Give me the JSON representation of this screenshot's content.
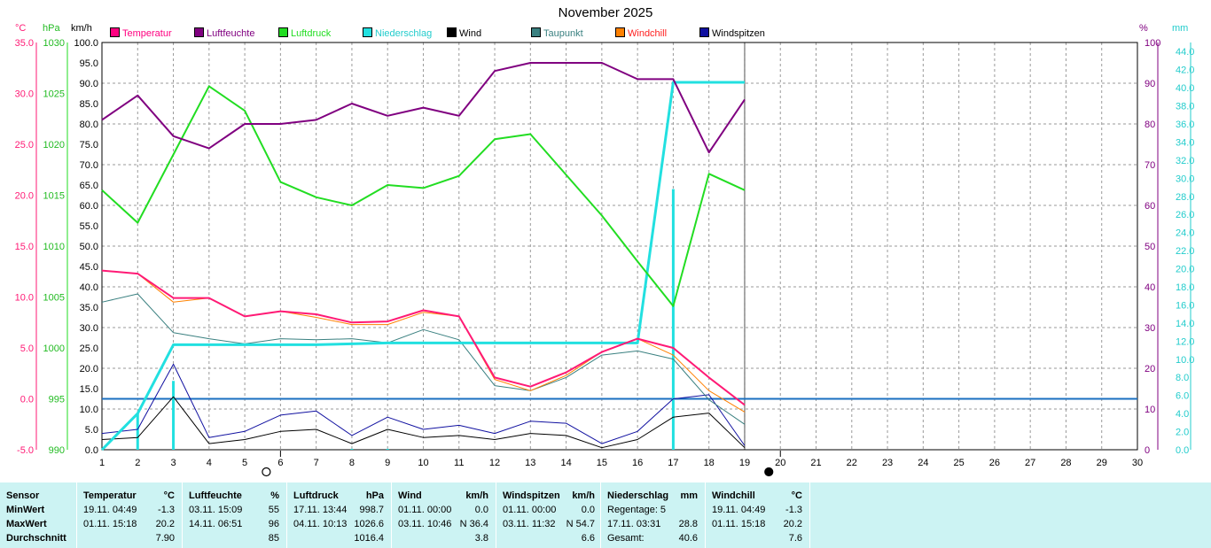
{
  "chart_data": {
    "type": "line",
    "title": "November 2025",
    "unit_labels": {
      "temp": "°C",
      "pressure": "hPa",
      "wind": "km/h",
      "humidity": "%",
      "precip": "mm"
    },
    "x": [
      1,
      2,
      3,
      4,
      5,
      6,
      7,
      8,
      9,
      10,
      11,
      12,
      13,
      14,
      15,
      16,
      17,
      18,
      19
    ],
    "x_ticks": [
      "1",
      "2",
      "3",
      "4",
      "5",
      "6",
      "7",
      "8",
      "9",
      "10",
      "11",
      "12",
      "13",
      "14",
      "15",
      "16",
      "17",
      "18",
      "19",
      "20",
      "21",
      "22",
      "23",
      "24",
      "25",
      "26",
      "27",
      "28",
      "29",
      "30"
    ],
    "xlim": [
      1,
      30
    ],
    "axes": {
      "temp": {
        "range": [
          -5,
          35
        ],
        "ticks": [
          "-5.0",
          "0.0",
          "5.0",
          "10.0",
          "15.0",
          "20.0",
          "25.0",
          "30.0",
          "35.0"
        ]
      },
      "pressure": {
        "range": [
          990,
          1030
        ],
        "ticks": [
          "990",
          "995",
          "1000",
          "1005",
          "1010",
          "1015",
          "1020",
          "1025",
          "1030"
        ]
      },
      "wind": {
        "range": [
          0,
          100
        ],
        "ticks": [
          "0.0",
          "5.0",
          "10.0",
          "15.0",
          "20.0",
          "25.0",
          "30.0",
          "35.0",
          "40.0",
          "45.0",
          "50.0",
          "55.0",
          "60.0",
          "65.0",
          "70.0",
          "75.0",
          "80.0",
          "85.0",
          "90.0",
          "95.0",
          "100.0"
        ]
      },
      "humidity": {
        "range": [
          0,
          100
        ],
        "ticks": [
          "0",
          "10",
          "20",
          "30",
          "40",
          "50",
          "60",
          "70",
          "80",
          "90",
          "100"
        ]
      },
      "precip": {
        "range": [
          0,
          45
        ],
        "ticks": [
          "0.0",
          "2.0",
          "4.0",
          "6.0",
          "8.0",
          "10.0",
          "12.0",
          "14.0",
          "16.0",
          "18.0",
          "20.0",
          "22.0",
          "24.0",
          "26.0",
          "28.0",
          "30.0",
          "32.0",
          "34.0",
          "36.0",
          "38.0",
          "40.0",
          "42.0",
          "44.0"
        ]
      }
    },
    "legend": [
      {
        "name": "Temperatur",
        "color": "#ff0080",
        "text_color": "#ff0080"
      },
      {
        "name": "Luftfeuchte",
        "color": "#800080",
        "text_color": "#800080"
      },
      {
        "name": "Luftdruck",
        "color": "#22dd22",
        "text_color": "#22dd22"
      },
      {
        "name": "Niederschlag",
        "color": "#22e0e0",
        "text_color": "#22cccc"
      },
      {
        "name": "Wind",
        "color": "#000000",
        "text_color": "#000000"
      },
      {
        "name": "Taupunkt",
        "color": "#3a8080",
        "text_color": "#3a8080"
      },
      {
        "name": "Windchill",
        "color": "#ff8000",
        "text_color": "#ff2020"
      },
      {
        "name": "Windspitzen",
        "color": "#1010a0",
        "text_color": "#000000"
      }
    ],
    "series": [
      {
        "name": "Temperatur",
        "axis": "temp",
        "color": "#ff1a75",
        "width": 2,
        "values": [
          12.6,
          12.3,
          9.9,
          9.9,
          8.1,
          8.6,
          8.3,
          7.5,
          7.6,
          8.7,
          8.1,
          2.1,
          1.2,
          2.6,
          4.6,
          5.9,
          5.0,
          2.1,
          -0.6
        ]
      },
      {
        "name": "Luftfeuchte",
        "axis": "humidity",
        "color": "#800080",
        "width": 2,
        "values": [
          81,
          87,
          77,
          74,
          80,
          80,
          81,
          85,
          82,
          84,
          82,
          93,
          95,
          95,
          95,
          91,
          91,
          73,
          86
        ]
      },
      {
        "name": "Luftdruck",
        "axis": "pressure",
        "color": "#22dd22",
        "width": 2,
        "values": [
          1015.5,
          1012.3,
          1019.0,
          1025.7,
          1023.3,
          1016.3,
          1014.8,
          1014.0,
          1016.0,
          1015.7,
          1016.9,
          1020.5,
          1021.0,
          1017.0,
          1013.0,
          1008.5,
          1004.1,
          1017.1,
          1015.5
        ]
      },
      {
        "name": "Taupunkt",
        "axis": "temp",
        "color": "#3a8080",
        "width": 1,
        "values": [
          9.5,
          10.3,
          6.5,
          5.9,
          5.4,
          5.9,
          5.8,
          5.9,
          5.5,
          6.8,
          5.8,
          1.3,
          0.8,
          2.1,
          4.3,
          4.7,
          3.9,
          -0.1,
          -2.5
        ]
      },
      {
        "name": "Windchill",
        "axis": "temp",
        "color": "#ff8000",
        "width": 1,
        "values": [
          12.6,
          12.3,
          9.5,
          9.9,
          8.1,
          8.6,
          8.0,
          7.3,
          7.3,
          8.5,
          8.1,
          1.9,
          0.8,
          2.3,
          4.6,
          5.9,
          4.3,
          0.8,
          -1.3
        ]
      },
      {
        "name": "Wind",
        "axis": "wind",
        "color": "#000000",
        "width": 1,
        "values": [
          2.5,
          3.0,
          13.0,
          1.5,
          2.5,
          4.5,
          5.0,
          1.5,
          5.0,
          3.0,
          3.5,
          2.5,
          4.0,
          3.5,
          0.5,
          2.5,
          8.0,
          9.0,
          0.5
        ]
      },
      {
        "name": "Windspitzen",
        "axis": "wind",
        "color": "#1010a0",
        "width": 1,
        "values": [
          4.0,
          5.0,
          21.0,
          3.0,
          4.5,
          8.5,
          9.5,
          3.5,
          8.0,
          5.0,
          6.0,
          4.0,
          7.0,
          6.5,
          1.5,
          4.5,
          12.5,
          13.5,
          1.0
        ]
      },
      {
        "name": "Niederschlag (kumuliert)",
        "axis": "precip",
        "color": "#22e0e0",
        "width": 3,
        "values": [
          0,
          4.0,
          11.6,
          11.6,
          11.6,
          11.6,
          11.6,
          11.7,
          11.8,
          11.8,
          11.8,
          11.8,
          11.8,
          11.8,
          11.8,
          11.8,
          40.6,
          40.6,
          40.6
        ]
      },
      {
        "name": "Niederschlag (Tag)",
        "axis": "precip",
        "type": "bar",
        "color": "#22e0e0",
        "width": 3,
        "values": [
          0,
          4.0,
          7.6,
          0,
          0,
          0,
          0,
          0.1,
          0.1,
          0,
          0,
          0,
          0,
          0,
          0,
          0,
          28.8,
          0,
          0
        ]
      }
    ],
    "zero_line": {
      "axis": "temp",
      "value": 0.0,
      "color": "#1a6fc0"
    },
    "moon_phases": [
      {
        "x": 6,
        "phase": "full"
      },
      {
        "x": 20,
        "phase": "new"
      }
    ],
    "grid": true
  },
  "stats": {
    "sensor": {
      "header": "Sensor",
      "min": "MinWert",
      "max": "MaxWert",
      "avg": "Durchschnitt"
    },
    "temperatur": {
      "header": "Temperatur",
      "unit": "°C",
      "min_time": "19.11.  04:49",
      "min_val": "-1.3",
      "max_time": "01.11.  15:18",
      "max_val": "20.2",
      "avg": "7.90"
    },
    "luftfeuchte": {
      "header": "Luftfeuchte",
      "unit": "%",
      "min_time": "03.11.  15:09",
      "min_val": "55",
      "max_time": "14.11.  06:51",
      "max_val": "96",
      "avg": "85"
    },
    "luftdruck": {
      "header": "Luftdruck",
      "unit": "hPa",
      "min_time": "17.11.  13:44",
      "min_val": "998.7",
      "max_time": "04.11.  10:13",
      "max_val": "1026.6",
      "avg": "1016.4"
    },
    "wind": {
      "header": "Wind",
      "unit": "km/h",
      "min_time": "01.11.  00:00",
      "min_val": "0.0",
      "max_time": "03.11.  10:46",
      "max_val": "N 36.4",
      "avg": "3.8"
    },
    "windspitzen": {
      "header": "Windspitzen",
      "unit": "km/h",
      "min_time": "01.11.  00:00",
      "min_val": "0.0",
      "max_time": "03.11.  11:32",
      "max_val": "N 54.7",
      "avg": "6.6"
    },
    "niederschlag": {
      "header": "Niederschlag",
      "unit": "mm",
      "row1": "Regentage: 5",
      "max_time": "17.11.  03:31",
      "max_val": "28.8",
      "total_label": "Gesamt:",
      "total_val": "40.6"
    },
    "windchill": {
      "header": "Windchill",
      "unit": "°C",
      "min_time": "19.11.  04:49",
      "min_val": "-1.3",
      "max_time": "01.11.  15:18",
      "max_val": "20.2",
      "avg": "7.6"
    }
  }
}
